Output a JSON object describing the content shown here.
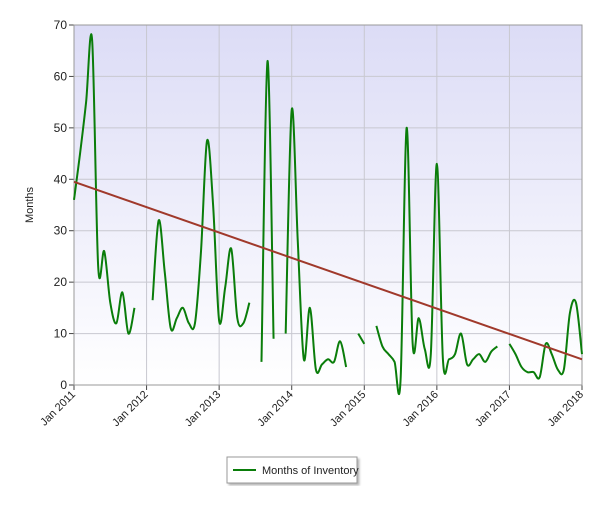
{
  "chart_data": {
    "type": "line",
    "y_label": "Months",
    "x": [
      "Jan 2011",
      "Feb 2011",
      "Mar 2011",
      "Apr 2011",
      "May 2011",
      "Jun 2011",
      "Jul 2011",
      "Aug 2011",
      "Sep 2011",
      "Oct 2011",
      "Nov 2011",
      "Dec 2011",
      "Jan 2012",
      "Feb 2012",
      "Mar 2012",
      "Apr 2012",
      "May 2012",
      "Jun 2012",
      "Jul 2012",
      "Aug 2012",
      "Sep 2012",
      "Oct 2012",
      "Nov 2012",
      "Dec 2012",
      "Jan 2013",
      "Feb 2013",
      "Mar 2013",
      "Apr 2013",
      "May 2013",
      "Jun 2013",
      "Jul 2013",
      "Aug 2013",
      "Sep 2013",
      "Oct 2013",
      "Nov 2013",
      "Dec 2013",
      "Jan 2014",
      "Feb 2014",
      "Mar 2014",
      "Apr 2014",
      "May 2014",
      "Jun 2014",
      "Jul 2014",
      "Aug 2014",
      "Sep 2014",
      "Oct 2014",
      "Nov 2014",
      "Dec 2014",
      "Jan 2015",
      "Feb 2015",
      "Mar 2015",
      "Apr 2015",
      "May 2015",
      "Jun 2015",
      "Jul 2015",
      "Aug 2015",
      "Sep 2015",
      "Oct 2015",
      "Nov 2015",
      "Dec 2015",
      "Jan 2016",
      "Feb 2016",
      "Mar 2016",
      "Apr 2016",
      "May 2016",
      "Jun 2016",
      "Jul 2016",
      "Aug 2016",
      "Sep 2016",
      "Oct 2016",
      "Nov 2016",
      "Dec 2016",
      "Jan 2017",
      "Feb 2017",
      "Mar 2017",
      "Apr 2017",
      "May 2017",
      "Jun 2017",
      "Jul 2017",
      "Aug 2017",
      "Sep 2017",
      "Oct 2017",
      "Nov 2017",
      "Dec 2017",
      "Jan 2018"
    ],
    "series": [
      {
        "name": "Months of Inventory",
        "color": "#0a7d0a",
        "values": [
          36,
          45,
          55,
          67,
          23,
          26,
          16,
          12,
          18,
          10,
          15,
          null,
          null,
          16.5,
          32,
          22,
          11,
          13,
          15,
          12,
          12,
          26,
          47.5,
          35,
          12.5,
          19,
          26.5,
          13,
          12,
          16,
          null,
          4.5,
          63,
          9,
          null,
          10,
          53.5,
          28,
          5,
          15,
          3,
          4,
          5,
          4.5,
          8.5,
          3.5,
          null,
          10,
          8,
          null,
          11.5,
          7.5,
          6,
          4.5,
          1,
          50,
          8,
          13,
          7,
          6,
          43,
          5,
          5,
          6,
          10,
          4,
          5,
          6,
          4.5,
          6.5,
          7.5,
          null,
          8,
          6,
          3.5,
          2.5,
          2.5,
          1.5,
          8,
          6,
          3,
          3,
          14,
          16,
          6
        ]
      }
    ],
    "trend": {
      "color": "#a0392b",
      "x": [
        "Jan 2011",
        "Jan 2018"
      ],
      "values": [
        39.5,
        5
      ]
    },
    "ylim": [
      0,
      70
    ],
    "yticks": [
      0,
      10,
      20,
      30,
      40,
      50,
      60,
      70
    ],
    "xticks": [
      "Jan 2011",
      "Jan 2012",
      "Jan 2013",
      "Jan 2014",
      "Jan 2015",
      "Jan 2016",
      "Jan 2017",
      "Jan 2018"
    ],
    "grid": true
  }
}
